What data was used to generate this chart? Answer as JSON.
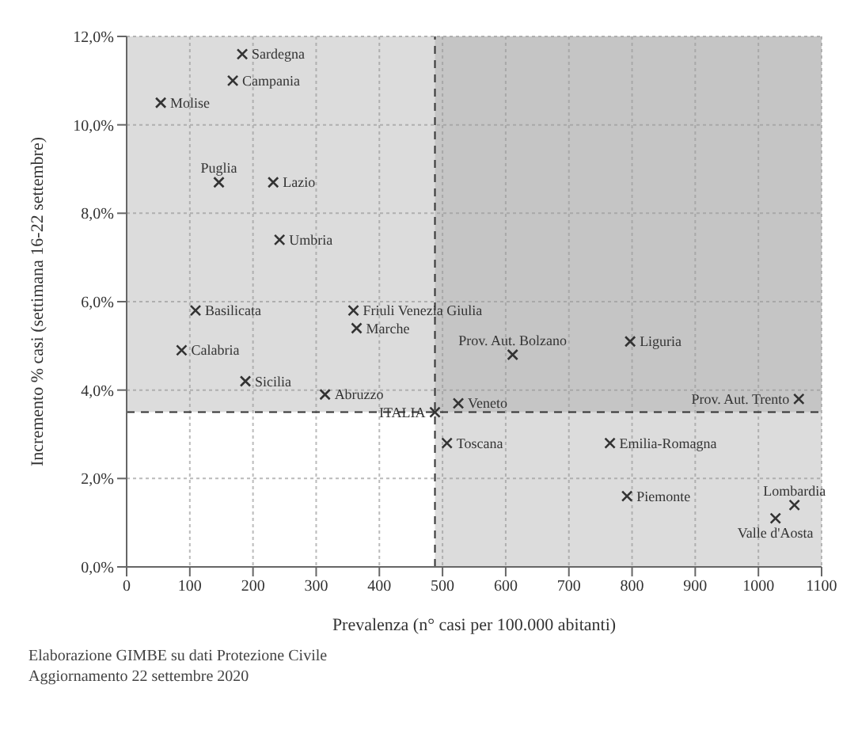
{
  "chart_data": {
    "type": "scatter",
    "xlabel": "Prevalenza (n° casi per 100.000 abitanti)",
    "ylabel": "Incremento % casi (settimana 16-22 settembre)",
    "annotations": [
      "Elaborazione GIMBE su dati Protezione Civile",
      "Aggiornamento 22 settembre 2020"
    ],
    "xlim": [
      0,
      1100
    ],
    "xticks": [
      0,
      100,
      200,
      300,
      400,
      500,
      600,
      700,
      800,
      900,
      1000,
      1100
    ],
    "ylim": [
      0,
      12
    ],
    "yticks": [
      {
        "value": 0,
        "label": "0,0%"
      },
      {
        "value": 2,
        "label": "2,0%"
      },
      {
        "value": 4,
        "label": "4,0%"
      },
      {
        "value": 6,
        "label": "6,0%"
      },
      {
        "value": 8,
        "label": "8,0%"
      },
      {
        "value": 10,
        "label": "10,0%"
      },
      {
        "value": 12,
        "label": "12,0%"
      }
    ],
    "grid": true,
    "marker": "cross",
    "ref_lines": [
      {
        "axis": "x",
        "value": 488,
        "color": "#333333",
        "line_style": "dashed"
      },
      {
        "axis": "y",
        "value": 3.5,
        "color": "#333333",
        "line_style": "dashed"
      }
    ],
    "bands": [
      {
        "axis": "x",
        "from": 488,
        "to": 1100,
        "color": "#9a9a9a"
      },
      {
        "axis": "y",
        "from": 3.5,
        "to": 12,
        "color": "#9a9a9a"
      }
    ],
    "series": [
      {
        "name": "Sardegna",
        "color": "#333333",
        "x": [
          183
        ],
        "values": [
          11.6
        ]
      },
      {
        "name": "Campania",
        "color": "#333333",
        "x": [
          168
        ],
        "values": [
          11.0
        ]
      },
      {
        "name": "Molise",
        "color": "#333333",
        "x": [
          54
        ],
        "values": [
          10.5
        ]
      },
      {
        "name": "Puglia",
        "color": "#333333",
        "x": [
          146
        ],
        "values": [
          8.7
        ]
      },
      {
        "name": "Lazio",
        "color": "#333333",
        "x": [
          232
        ],
        "values": [
          8.7
        ]
      },
      {
        "name": "Umbria",
        "color": "#333333",
        "x": [
          242
        ],
        "values": [
          7.4
        ]
      },
      {
        "name": "Basilicata",
        "color": "#333333",
        "x": [
          109
        ],
        "values": [
          5.8
        ]
      },
      {
        "name": "Friuli Venezia Giulia",
        "color": "#333333",
        "x": [
          359
        ],
        "values": [
          5.8
        ]
      },
      {
        "name": "Marche",
        "color": "#333333",
        "x": [
          364
        ],
        "values": [
          5.4
        ]
      },
      {
        "name": "Calabria",
        "color": "#333333",
        "x": [
          87
        ],
        "values": [
          4.9
        ]
      },
      {
        "name": "Sicilia",
        "color": "#333333",
        "x": [
          188
        ],
        "values": [
          4.2
        ]
      },
      {
        "name": "Abruzzo",
        "color": "#333333",
        "x": [
          314
        ],
        "values": [
          3.9
        ]
      },
      {
        "name": "ITALIA",
        "color": "#333333",
        "x": [
          488
        ],
        "values": [
          3.5
        ]
      },
      {
        "name": "Prov. Aut. Bolzano",
        "color": "#333333",
        "x": [
          611
        ],
        "values": [
          4.8
        ]
      },
      {
        "name": "Liguria",
        "color": "#333333",
        "x": [
          797
        ],
        "values": [
          5.1
        ]
      },
      {
        "name": "Prov. Aut. Trento",
        "color": "#333333",
        "x": [
          1064
        ],
        "values": [
          3.8
        ]
      },
      {
        "name": "Veneto",
        "color": "#333333",
        "x": [
          525
        ],
        "values": [
          3.7
        ]
      },
      {
        "name": "Toscana",
        "color": "#333333",
        "x": [
          507
        ],
        "values": [
          2.8
        ]
      },
      {
        "name": "Emilia-Romagna",
        "color": "#333333",
        "x": [
          765
        ],
        "values": [
          2.8
        ]
      },
      {
        "name": "Piemonte",
        "color": "#333333",
        "x": [
          792
        ],
        "values": [
          1.6
        ]
      },
      {
        "name": "Lombardia",
        "color": "#333333",
        "x": [
          1057
        ],
        "values": [
          1.4
        ]
      },
      {
        "name": "Valle d'Aosta",
        "color": "#333333",
        "x": [
          1027
        ],
        "values": [
          1.1
        ]
      }
    ]
  }
}
